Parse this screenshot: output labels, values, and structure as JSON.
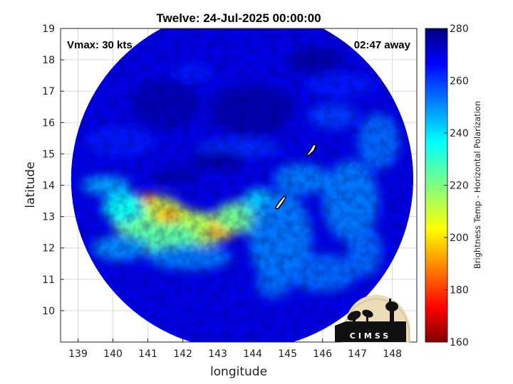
{
  "chart_data": {
    "type": "heatmap",
    "title": "Twelve: 24-Jul-2025 00:00:00",
    "xlabel": "longitude",
    "ylabel": "latitude",
    "xlim": [
      138.5,
      148.7
    ],
    "ylim": [
      9,
      19
    ],
    "xticks": [
      "139",
      "140",
      "141",
      "142",
      "143",
      "144",
      "145",
      "146",
      "147",
      "148"
    ],
    "yticks": [
      "10",
      "11",
      "12",
      "13",
      "14",
      "15",
      "16",
      "17",
      "18",
      "19"
    ],
    "grid": true,
    "annotations": {
      "vmax": "Vmax: 30 kts",
      "time_away": "02:47 away"
    },
    "swath": {
      "center_lon": 143.7,
      "center_lat": 14.2,
      "radius_deg": 4.9
    },
    "colorbar": {
      "label": "Brightness Temp - Horizontal Polarization",
      "range": [
        160,
        280
      ],
      "ticks": [
        "280",
        "260",
        "240",
        "220",
        "200",
        "180",
        "160"
      ],
      "colormap": "jet"
    },
    "background_value": 268,
    "features": [
      {
        "lon": 141.0,
        "lat": 13.2,
        "rx": 1.0,
        "ry": 0.5,
        "value": 210
      },
      {
        "lon": 141.8,
        "lat": 12.7,
        "rx": 0.9,
        "ry": 0.6,
        "value": 208
      },
      {
        "lon": 141.0,
        "lat": 13.6,
        "rx": 0.25,
        "ry": 0.15,
        "value": 185
      },
      {
        "lon": 141.6,
        "lat": 13.05,
        "rx": 0.3,
        "ry": 0.18,
        "value": 190
      },
      {
        "lon": 140.6,
        "lat": 12.8,
        "rx": 0.6,
        "ry": 0.45,
        "value": 222
      },
      {
        "lon": 142.5,
        "lat": 12.6,
        "rx": 0.8,
        "ry": 0.55,
        "value": 215
      },
      {
        "lon": 143.2,
        "lat": 12.75,
        "rx": 0.4,
        "ry": 0.45,
        "value": 200
      },
      {
        "lon": 143.05,
        "lat": 13.1,
        "rx": 0.15,
        "ry": 0.12,
        "value": 185
      },
      {
        "lon": 142.9,
        "lat": 12.5,
        "rx": 0.25,
        "ry": 0.12,
        "value": 190
      },
      {
        "lon": 141.4,
        "lat": 12.3,
        "rx": 1.0,
        "ry": 0.5,
        "value": 225
      },
      {
        "lon": 143.7,
        "lat": 13.0,
        "rx": 0.8,
        "ry": 0.5,
        "value": 222
      },
      {
        "lon": 140.3,
        "lat": 13.3,
        "rx": 0.6,
        "ry": 0.5,
        "value": 235
      },
      {
        "lon": 139.8,
        "lat": 14.0,
        "rx": 0.7,
        "ry": 0.3,
        "value": 245
      },
      {
        "lon": 140.2,
        "lat": 12.0,
        "rx": 0.8,
        "ry": 0.4,
        "value": 248
      },
      {
        "lon": 142.2,
        "lat": 11.7,
        "rx": 1.2,
        "ry": 0.4,
        "value": 250
      },
      {
        "lon": 144.2,
        "lat": 13.5,
        "rx": 0.5,
        "ry": 0.4,
        "value": 240
      },
      {
        "lon": 144.8,
        "lat": 12.3,
        "rx": 0.9,
        "ry": 1.5,
        "value": 250
      },
      {
        "lon": 145.4,
        "lat": 14.2,
        "rx": 0.8,
        "ry": 0.5,
        "value": 250
      },
      {
        "lon": 146.8,
        "lat": 13.5,
        "rx": 0.8,
        "ry": 1.3,
        "value": 250
      },
      {
        "lon": 147.6,
        "lat": 15.4,
        "rx": 0.6,
        "ry": 0.9,
        "value": 252
      },
      {
        "lon": 146.0,
        "lat": 11.2,
        "rx": 1.0,
        "ry": 0.6,
        "value": 252
      },
      {
        "lon": 144.6,
        "lat": 10.9,
        "rx": 0.5,
        "ry": 0.5,
        "value": 252
      },
      {
        "lon": 147.2,
        "lat": 11.9,
        "rx": 0.5,
        "ry": 0.8,
        "value": 252
      },
      {
        "lon": 143.6,
        "lat": 15.2,
        "rx": 1.2,
        "ry": 0.3,
        "value": 260
      },
      {
        "lon": 140.2,
        "lat": 15.4,
        "rx": 1.0,
        "ry": 0.5,
        "value": 262
      },
      {
        "lon": 142.3,
        "lat": 17.6,
        "rx": 0.6,
        "ry": 0.3,
        "value": 262
      },
      {
        "lon": 146.5,
        "lat": 17.2,
        "rx": 1.0,
        "ry": 0.4,
        "value": 262
      },
      {
        "lon": 146.3,
        "lat": 16.2,
        "rx": 0.7,
        "ry": 0.4,
        "value": 258
      },
      {
        "lon": 144.0,
        "lat": 16.4,
        "rx": 1.2,
        "ry": 0.8,
        "value": 275
      },
      {
        "lon": 141.5,
        "lat": 16.6,
        "rx": 1.0,
        "ry": 0.8,
        "value": 274
      },
      {
        "lon": 145.8,
        "lat": 18.0,
        "rx": 0.8,
        "ry": 0.4,
        "value": 276
      },
      {
        "lon": 143.0,
        "lat": 14.8,
        "rx": 0.8,
        "ry": 0.3,
        "value": 276
      },
      {
        "lon": 141.8,
        "lat": 14.3,
        "rx": 0.7,
        "ry": 0.3,
        "value": 274
      }
    ],
    "islands": [
      [
        [
          144.65,
          13.28
        ],
        [
          144.75,
          13.45
        ],
        [
          144.9,
          13.65
        ],
        [
          144.95,
          13.62
        ],
        [
          144.85,
          13.43
        ],
        [
          144.72,
          13.24
        ]
      ],
      [
        [
          145.6,
          14.95
        ],
        [
          145.75,
          15.1
        ],
        [
          145.82,
          15.28
        ],
        [
          145.74,
          15.3
        ],
        [
          145.65,
          15.12
        ],
        [
          145.55,
          14.98
        ]
      ]
    ]
  },
  "logo": {
    "text": "CIMSS"
  }
}
